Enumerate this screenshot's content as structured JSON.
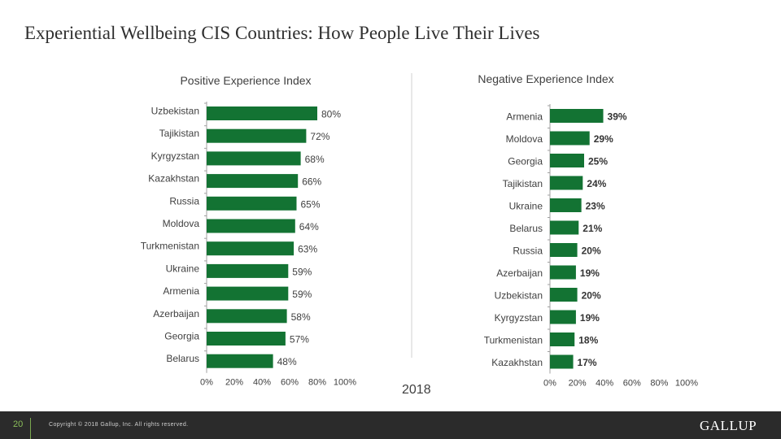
{
  "title": "Experiential Wellbeing CIS Countries: How People Live Their Lives",
  "year": "2018",
  "footer": {
    "page_number": "20",
    "copyright": "Copyright © 2018 Gallup, Inc. All rights reserved.",
    "logo": "GALLUP"
  },
  "colors": {
    "bar": "#137333",
    "axis": "#a0a0a0"
  },
  "chart_data": [
    {
      "type": "bar",
      "orientation": "horizontal",
      "title": "Positive Experience Index",
      "categories": [
        "Uzbekistan",
        "Tajikistan",
        "Kyrgyzstan",
        "Kazakhstan",
        "Russia",
        "Moldova",
        "Turkmenistan",
        "Ukraine",
        "Armenia",
        "Azerbaijan",
        "Georgia",
        "Belarus"
      ],
      "values": [
        80,
        72,
        68,
        66,
        65,
        64,
        63,
        59,
        59,
        58,
        57,
        48
      ],
      "data_labels": [
        "80%",
        "72%",
        "68%",
        "66%",
        "65%",
        "64%",
        "63%",
        "59%",
        "59%",
        "58%",
        "57%",
        "48%"
      ],
      "xlim": [
        0,
        100
      ],
      "xticks": [
        "0%",
        "20%",
        "40%",
        "60%",
        "80%",
        "100%"
      ],
      "grid": false
    },
    {
      "type": "bar",
      "orientation": "horizontal",
      "title": "Negative Experience Index",
      "categories": [
        "Armenia",
        "Moldova",
        "Georgia",
        "Tajikistan",
        "Ukraine",
        "Belarus",
        "Russia",
        "Azerbaijan",
        "Uzbekistan",
        "Kyrgyzstan",
        "Turkmenistan",
        "Kazakhstan"
      ],
      "values": [
        39,
        29,
        25,
        24,
        23,
        21,
        20,
        19,
        20,
        19,
        18,
        17
      ],
      "data_labels": [
        "39%",
        "29%",
        "25%",
        "24%",
        "23%",
        "21%",
        "20%",
        "19%",
        "20%",
        "19%",
        "18%",
        "17%"
      ],
      "xlim": [
        0,
        100
      ],
      "xticks": [
        "0%",
        "20%",
        "40%",
        "60%",
        "80%",
        "100%"
      ],
      "grid": false
    }
  ]
}
